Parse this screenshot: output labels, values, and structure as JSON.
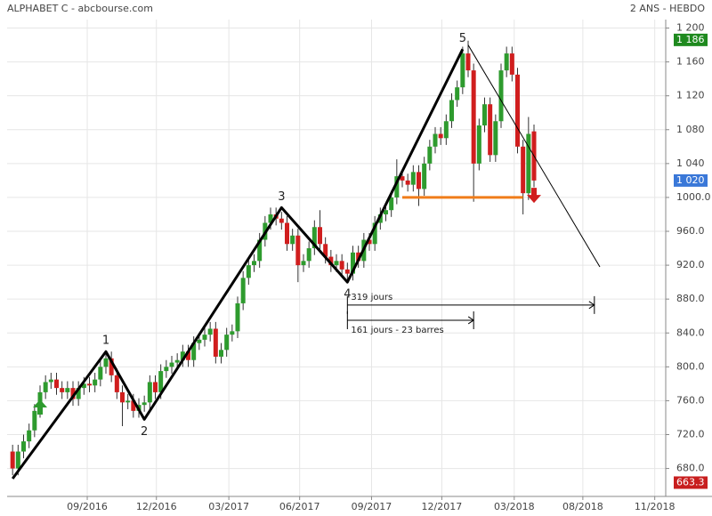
{
  "chart_data": {
    "type": "candlestick",
    "title": "ALPHABET C - abcbourse.com",
    "subtitle": "2 ANS - HEBDO",
    "up_color": "#2e9b2e",
    "down_color": "#d01e1e",
    "grid": true,
    "categories": [
      null,
      null,
      null,
      null,
      null,
      null,
      null,
      null,
      null,
      null,
      null,
      null,
      null,
      null,
      null,
      null,
      null,
      null,
      null,
      null,
      null,
      null,
      null,
      null,
      null,
      null,
      null,
      null,
      null,
      null,
      null,
      null,
      null,
      null,
      null,
      null,
      null,
      null,
      null,
      null,
      null,
      null,
      null,
      null,
      null,
      null,
      null,
      null,
      null,
      null,
      null,
      null,
      null,
      null,
      null,
      null,
      null,
      null,
      null,
      null,
      null,
      null,
      null,
      null,
      null,
      null,
      null,
      null,
      null,
      null,
      null,
      null,
      null,
      null,
      null,
      null,
      null,
      null,
      null,
      null,
      null,
      null,
      null,
      null,
      null,
      null,
      null,
      null,
      null,
      null,
      null,
      null,
      null,
      null,
      null,
      null
    ],
    "open": [
      700,
      680,
      700,
      712,
      725,
      748,
      770,
      782,
      785,
      775,
      770,
      775,
      762,
      775,
      780,
      778,
      785,
      800,
      810,
      790,
      770,
      758,
      760,
      748,
      755,
      758,
      782,
      770,
      795,
      800,
      805,
      808,
      818,
      808,
      828,
      832,
      838,
      845,
      812,
      820,
      838,
      842,
      875,
      905,
      920,
      925,
      950,
      970,
      980,
      975,
      970,
      945,
      955,
      920,
      925,
      940,
      965,
      945,
      930,
      920,
      925,
      915,
      910,
      935,
      925,
      950,
      945,
      970,
      980,
      985,
      1000,
      1025,
      1020,
      1015,
      1030,
      1010,
      1040,
      1060,
      1075,
      1070,
      1090,
      1115,
      1130,
      1170,
      1150,
      1040,
      1085,
      1110,
      1050,
      1090,
      1150,
      1170,
      1145,
      1060,
      1005,
      1078
    ],
    "high": [
      708,
      708,
      720,
      733,
      756,
      778,
      790,
      793,
      793,
      783,
      783,
      783,
      783,
      788,
      788,
      793,
      808,
      818,
      818,
      798,
      778,
      768,
      768,
      763,
      766,
      790,
      790,
      803,
      808,
      813,
      816,
      826,
      826,
      836,
      840,
      846,
      853,
      853,
      828,
      846,
      850,
      883,
      913,
      928,
      933,
      958,
      978,
      988,
      988,
      983,
      978,
      963,
      963,
      933,
      948,
      973,
      985,
      953,
      938,
      933,
      933,
      923,
      943,
      943,
      958,
      958,
      978,
      988,
      993,
      1008,
      1045,
      1033,
      1028,
      1038,
      1038,
      1048,
      1068,
      1083,
      1083,
      1098,
      1123,
      1138,
      1178,
      1185,
      1158,
      1093,
      1118,
      1118,
      1098,
      1158,
      1178,
      1178,
      1153,
      1068,
      1095,
      1086
    ],
    "low": [
      672,
      672,
      692,
      704,
      717,
      740,
      762,
      774,
      767,
      762,
      762,
      754,
      754,
      767,
      770,
      770,
      777,
      792,
      782,
      762,
      730,
      750,
      740,
      740,
      747,
      750,
      762,
      762,
      787,
      792,
      797,
      800,
      800,
      800,
      820,
      824,
      830,
      804,
      804,
      812,
      830,
      834,
      867,
      897,
      912,
      917,
      942,
      962,
      967,
      962,
      937,
      937,
      900,
      912,
      917,
      932,
      937,
      922,
      912,
      912,
      907,
      902,
      902,
      917,
      917,
      937,
      937,
      962,
      972,
      977,
      992,
      1012,
      1007,
      1007,
      990,
      1002,
      1032,
      1052,
      1062,
      1062,
      1082,
      1107,
      1122,
      1142,
      995,
      1032,
      1077,
      1042,
      1042,
      1082,
      1142,
      1137,
      1052,
      980,
      997,
      1012
    ],
    "close": [
      680,
      700,
      712,
      725,
      748,
      770,
      782,
      785,
      775,
      770,
      775,
      762,
      775,
      780,
      778,
      785,
      800,
      810,
      790,
      770,
      758,
      760,
      748,
      755,
      758,
      782,
      770,
      795,
      800,
      805,
      808,
      818,
      808,
      828,
      832,
      838,
      845,
      812,
      820,
      838,
      842,
      875,
      905,
      920,
      925,
      950,
      970,
      980,
      975,
      970,
      945,
      955,
      920,
      925,
      940,
      965,
      945,
      930,
      920,
      925,
      915,
      910,
      935,
      925,
      950,
      945,
      970,
      980,
      985,
      1000,
      1025,
      1020,
      1015,
      1030,
      1010,
      1040,
      1060,
      1075,
      1070,
      1090,
      1115,
      1130,
      1170,
      1150,
      1040,
      1085,
      1110,
      1050,
      1090,
      1150,
      1170,
      1145,
      1060,
      1005,
      1075,
      1020
    ],
    "xlim": [
      -1,
      119
    ],
    "xticks": [
      {
        "value": 13.6,
        "label": "09/2016"
      },
      {
        "value": 26.2,
        "label": "12/2016"
      },
      {
        "value": 39.4,
        "label": "03/2017"
      },
      {
        "value": 52.3,
        "label": "06/2017"
      },
      {
        "value": 65.4,
        "label": "09/2017"
      },
      {
        "value": 78.2,
        "label": "12/2017"
      },
      {
        "value": 91.4,
        "label": "03/2018"
      },
      {
        "value": 103.9,
        "label": "08/2018"
      },
      {
        "value": 117,
        "label": "11/2018"
      }
    ],
    "ylim": [
      647,
      1210
    ],
    "yticks": [
      {
        "value": 1200,
        "label": "1 200"
      },
      {
        "value": 1160,
        "label": "1 160"
      },
      {
        "value": 1120,
        "label": "1 120"
      },
      {
        "value": 1080,
        "label": "1 080"
      },
      {
        "value": 1040,
        "label": "1 040"
      },
      {
        "value": 1000,
        "label": "1000.0"
      },
      {
        "value": 960,
        "label": "960.0"
      },
      {
        "value": 920,
        "label": "920.0"
      },
      {
        "value": 880,
        "label": "880.0"
      },
      {
        "value": 840,
        "label": "840.0"
      },
      {
        "value": 800,
        "label": "800.0"
      },
      {
        "value": 760,
        "label": "760.0"
      },
      {
        "value": 720,
        "label": "720.0"
      },
      {
        "value": 680,
        "label": "680.0"
      }
    ],
    "price_markers": [
      {
        "value": 1186,
        "label": "1 186",
        "color": "#1f8a1f"
      },
      {
        "value": 1020,
        "label": "1 020",
        "color": "#3a78d8"
      },
      {
        "value": 663.3,
        "label": "663.3",
        "color": "#c81e1e"
      }
    ],
    "zigzag": {
      "x": [
        0,
        17,
        24,
        49,
        61,
        82
      ],
      "y": [
        668,
        818,
        738,
        988,
        900,
        1175
      ],
      "labels": [
        null,
        "1",
        "2",
        "3",
        "4",
        "5"
      ],
      "color": "#000"
    },
    "support": {
      "x": [
        71,
        93
      ],
      "y": [
        1000,
        1000
      ],
      "color": "#f07d1a"
    },
    "trendline": {
      "x": [
        83,
        107
      ],
      "y": [
        1180,
        918
      ],
      "color": "#000"
    },
    "measures": [
      {
        "x": [
          61,
          106
        ],
        "y": 873,
        "label": "319 jours"
      },
      {
        "x": [
          61,
          84
        ],
        "y": 855,
        "label": "161 jours - 23 barres"
      }
    ],
    "arrows": [
      {
        "x": 5,
        "y": 752,
        "dir": "up",
        "color": "#2e9b2e"
      },
      {
        "x": 95,
        "y": 1003,
        "dir": "down",
        "color": "#d01e1e"
      }
    ]
  }
}
